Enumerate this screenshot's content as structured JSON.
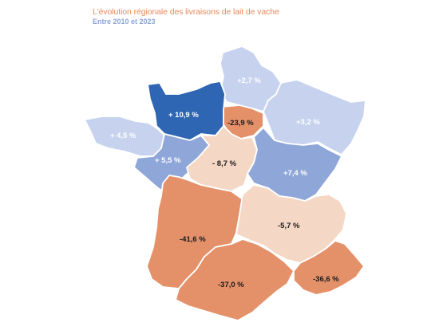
{
  "header": {
    "title": "L'évolution régionale des livraisons de lait de vache",
    "subtitle": "Entre 2010 et 2023"
  },
  "colors": {
    "strong_increase": "#2f66b3",
    "moderate_increase": "#8ea7d8",
    "slight_increase": "#c6d2ee",
    "slight_decrease": "#f4d7c4",
    "strong_decrease": "#e4916a"
  },
  "regions": [
    {
      "key": "hauts-de-france",
      "value": "+2,7 %"
    },
    {
      "key": "normandie",
      "value": "+ 10,9 %"
    },
    {
      "key": "ile-de-france",
      "value": "-23,9 %"
    },
    {
      "key": "grand-est",
      "value": "+3,2 %"
    },
    {
      "key": "bretagne",
      "value": "+ 4,5 %"
    },
    {
      "key": "pays-de-la-loire",
      "value": "+ 5,5 %"
    },
    {
      "key": "centre-val-de-loire",
      "value": "- 8,7 %"
    },
    {
      "key": "bourgogne-franche-comte",
      "value": "+7,4 %"
    },
    {
      "key": "nouvelle-aquitaine",
      "value": "-41,6 %"
    },
    {
      "key": "auvergne-rhone-alpes",
      "value": "-5,7 %"
    },
    {
      "key": "occitanie",
      "value": "-37,0 %"
    },
    {
      "key": "provence-alpes-cote-dazur",
      "value": "-36,6 %"
    }
  ]
}
